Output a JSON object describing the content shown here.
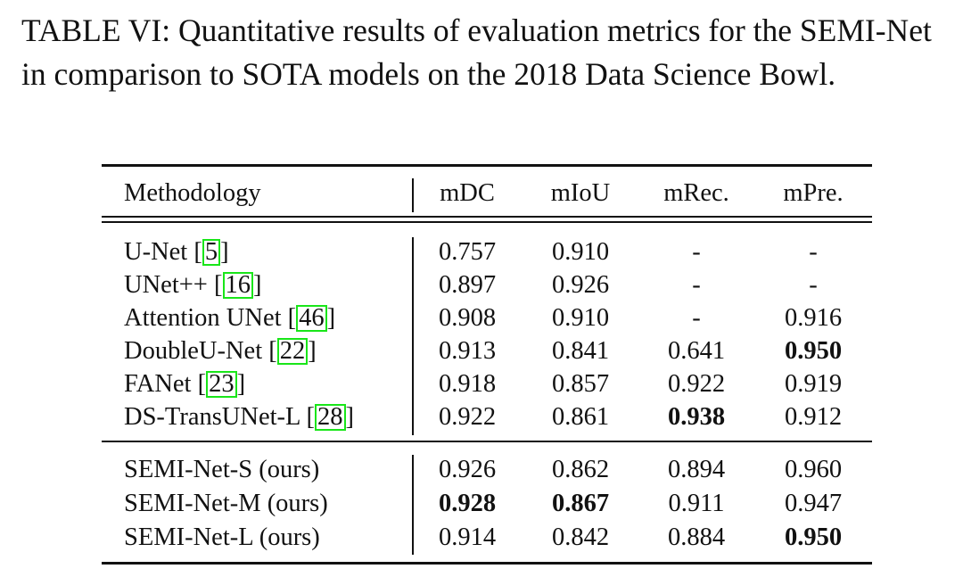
{
  "caption": "TABLE VI: Quantitative results of evaluation metrics for the SEMI-Net in comparison to SOTA models on the 2018 Data Science Bowl.",
  "table": {
    "headers": [
      "Methodology",
      "mDC",
      "mIoU",
      "mRec.",
      "mPre."
    ],
    "baseline_rows": [
      {
        "name": "U-Net",
        "ref": "5",
        "mdc": "0.757",
        "miou": "0.910",
        "mrec": "-",
        "mpre": "-"
      },
      {
        "name": "UNet++",
        "ref": "16",
        "mdc": "0.897",
        "miou": "0.926",
        "mrec": "-",
        "mpre": "-"
      },
      {
        "name": "Attention UNet",
        "ref": "46",
        "mdc": "0.908",
        "miou": "0.910",
        "mrec": "-",
        "mpre": "0.916"
      },
      {
        "name": "DoubleU-Net",
        "ref": "22",
        "mdc": "0.913",
        "miou": "0.841",
        "mrec": "0.641",
        "mpre": "0.950"
      },
      {
        "name": "FANet",
        "ref": "23",
        "mdc": "0.918",
        "miou": "0.857",
        "mrec": "0.922",
        "mpre": "0.919"
      },
      {
        "name": "DS-TransUNet-L",
        "ref": "28",
        "mdc": "0.922",
        "miou": "0.861",
        "mrec": "0.938",
        "mpre": "0.912"
      }
    ],
    "ours_rows": [
      {
        "name": "SEMI-Net-S (ours)",
        "mdc": "0.926",
        "miou": "0.862",
        "mrec": "0.894",
        "mpre": "0.960"
      },
      {
        "name": "SEMI-Net-M (ours)",
        "mdc": "0.928",
        "miou": "0.867",
        "mrec": "0.911",
        "mpre": "0.947"
      },
      {
        "name": "SEMI-Net-L (ours)",
        "mdc": "0.914",
        "miou": "0.842",
        "mrec": "0.884",
        "mpre": "0.950"
      }
    ]
  }
}
